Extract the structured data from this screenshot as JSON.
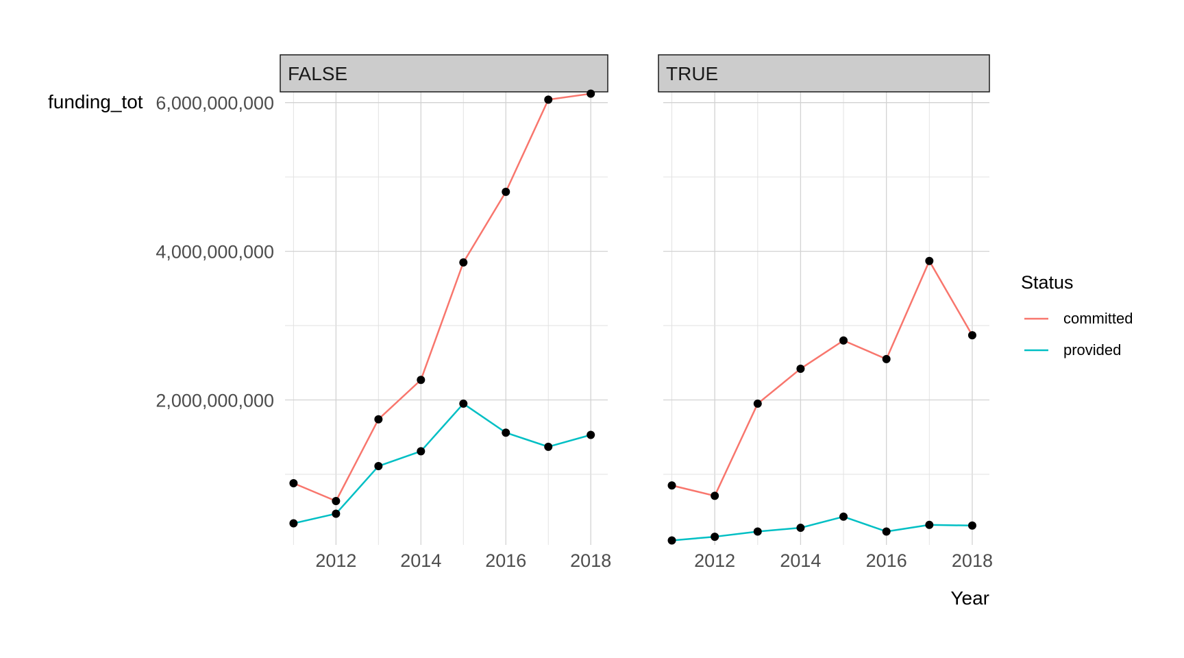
{
  "chart_data": {
    "type": "line",
    "xlabel": "Year",
    "ylabel": "funding_tot",
    "x": [
      2011,
      2012,
      2013,
      2014,
      2015,
      2016,
      2017,
      2018
    ],
    "x_ticks": [
      2012,
      2014,
      2016,
      2018
    ],
    "x_tick_labels": [
      "2012",
      "2014",
      "2016",
      "2018"
    ],
    "xlim": [
      2010.8,
      2018.4
    ],
    "y_ticks": [
      2000000000,
      4000000000,
      6000000000
    ],
    "y_tick_labels": [
      "2,000,000,000",
      "4,000,000,000",
      "6,000,000,000"
    ],
    "ylim": [
      50000000,
      6200000000
    ],
    "grid": true,
    "legend": {
      "title": "Status",
      "placement": "right",
      "entries": [
        "committed",
        "provided"
      ]
    },
    "colors": {
      "committed": "#F8766D",
      "provided": "#00BFC4",
      "points": "#000000",
      "strip_fill": "#CCCCCC"
    },
    "panels": [
      {
        "label": "FALSE",
        "series": [
          {
            "name": "committed",
            "values": [
              880000000,
              640000000,
              1740000000,
              2270000000,
              3850000000,
              4800000000,
              6040000000,
              6120000000
            ]
          },
          {
            "name": "provided",
            "values": [
              340000000,
              470000000,
              1110000000,
              1310000000,
              1950000000,
              1560000000,
              1370000000,
              1530000000
            ]
          }
        ]
      },
      {
        "label": "TRUE",
        "series": [
          {
            "name": "committed",
            "values": [
              850000000,
              710000000,
              1950000000,
              2420000000,
              2800000000,
              2550000000,
              3870000000,
              2870000000
            ]
          },
          {
            "name": "provided",
            "values": [
              110000000,
              160000000,
              230000000,
              280000000,
              430000000,
              230000000,
              320000000,
              310000000
            ]
          }
        ]
      }
    ]
  }
}
